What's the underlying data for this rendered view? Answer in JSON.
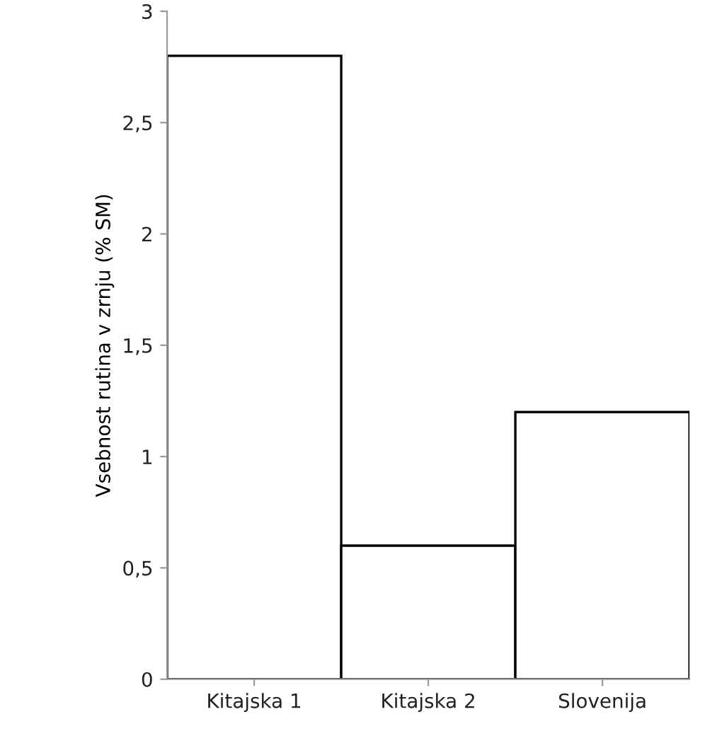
{
  "chart_data": {
    "type": "bar",
    "ylabel": "Vsebnost rutina v zrnju (% SM)",
    "categories": [
      "Kitajska 1",
      "Kitajska 2",
      "Slovenija"
    ],
    "values": [
      2.8,
      0.6,
      1.2
    ],
    "color": "#ffffff",
    "ylim": [
      0,
      3
    ],
    "yticks": [
      0,
      {
        "value": 0.5,
        "label": "0,5"
      },
      1,
      {
        "value": 1.5,
        "label": "1,5"
      },
      2,
      {
        "value": 2.5,
        "label": "2,5"
      },
      3
    ],
    "grid": false
  }
}
